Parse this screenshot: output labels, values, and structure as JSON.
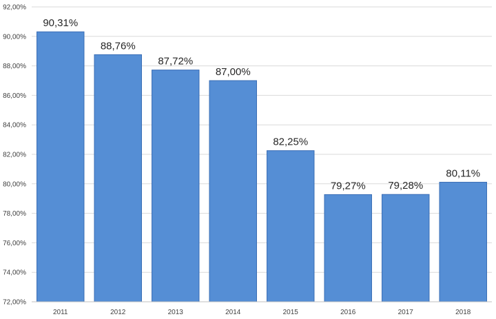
{
  "chart_data": {
    "type": "bar",
    "title": "",
    "xlabel": "",
    "ylabel": "",
    "categories": [
      "2011",
      "2012",
      "2013",
      "2014",
      "2015",
      "2016",
      "2017",
      "2018"
    ],
    "values": [
      90.31,
      88.76,
      87.72,
      87.0,
      82.25,
      79.27,
      79.28,
      80.11
    ],
    "data_labels": [
      "90,31%",
      "88,76%",
      "87,72%",
      "87,00%",
      "82,25%",
      "79,27%",
      "79,28%",
      "80,11%"
    ],
    "ylim": [
      72,
      92
    ],
    "yticks": [
      72,
      74,
      76,
      78,
      80,
      82,
      84,
      86,
      88,
      90,
      92
    ],
    "ytick_labels": [
      "72,00%",
      "74,00%",
      "76,00%",
      "78,00%",
      "80,00%",
      "82,00%",
      "84,00%",
      "86,00%",
      "88,00%",
      "90,00%",
      "92,00%"
    ],
    "grid": true,
    "legend": "none",
    "bar_color": "#558ED5",
    "bar_edge_color": "#3A6DB5"
  }
}
